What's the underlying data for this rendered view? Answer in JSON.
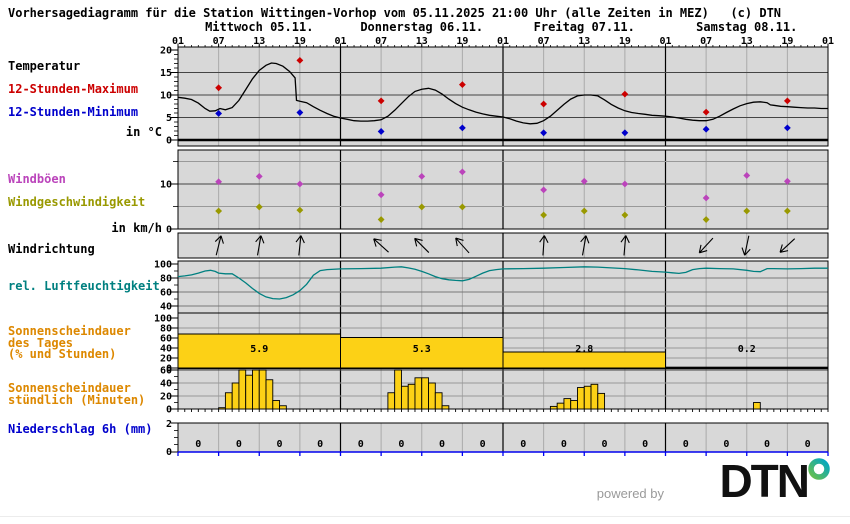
{
  "title": "Vorhersagediagramm für die Station Wittingen-Vorhop vom 05.11.2025 21:00 Uhr (alle Zeiten in MEZ)   (c) DTN",
  "footer": {
    "powered_by": "powered by",
    "brand": "DTN"
  },
  "sidebar": {
    "temperature_label": "Temperatur",
    "max_label": "12-Stunden-Maximum",
    "min_label": "12-Stunden-Minimum",
    "temp_unit": "in °C",
    "gusts_label": "Windböen",
    "windspeed_label": "Windgeschwindigkeit",
    "wind_unit": "in km/h",
    "winddir_label": "Windrichtung",
    "humidity_label": "rel. Luftfeuchtigkeit",
    "sunshine_daily_1": "Sonnenscheindauer",
    "sunshine_daily_2": "des Tages",
    "sunshine_daily_3": "(% und Stunden)",
    "sunshine_hourly_1": "Sonnenscheindauer",
    "sunshine_hourly_2": "stündlich (Minuten)",
    "precip_label": "Niederschlag 6h (mm)"
  },
  "colors": {
    "red": "#cc0000",
    "blue": "#0000cc",
    "magenta": "#bb44bb",
    "olive": "#999900",
    "teal": "#008080",
    "orange": "#dd8800",
    "yellow": "#fcd116",
    "panel_bg": "#d8d8d8",
    "grid_gray": "#aaaaaa",
    "axis_blue": "#0000ee"
  },
  "chart_data": {
    "type": "meteogram",
    "x_axis": {
      "hours_range": [
        0,
        96
      ],
      "tick_step_hours": 6,
      "time_label_cycle": [
        "01",
        "07",
        "13",
        "19"
      ]
    },
    "days": [
      "Mittwoch 05.11.",
      "Donnerstag 06.11.",
      "Freitag 07.11.",
      "Samstag 08.11."
    ],
    "temperature": {
      "ylim": [
        0,
        20
      ],
      "ytick_labels": [
        0,
        5,
        10,
        15,
        20
      ],
      "grid": [
        5,
        10,
        15
      ],
      "curve": [
        [
          0,
          9.5
        ],
        [
          1,
          9.3
        ],
        [
          2,
          9.0
        ],
        [
          3,
          8.2
        ],
        [
          4,
          7.0
        ],
        [
          4.7,
          6.4
        ],
        [
          5.5,
          6.5
        ],
        [
          6.2,
          7.0
        ],
        [
          7,
          6.7
        ],
        [
          8,
          7.2
        ],
        [
          9,
          8.8
        ],
        [
          10,
          11.2
        ],
        [
          11,
          13.6
        ],
        [
          12,
          15.5
        ],
        [
          13,
          16.6
        ],
        [
          13.8,
          17.1
        ],
        [
          14.5,
          17.0
        ],
        [
          15.5,
          16.4
        ],
        [
          16.5,
          15.2
        ],
        [
          17.3,
          13.8
        ],
        [
          17.5,
          8.8
        ],
        [
          18,
          8.6
        ],
        [
          19,
          8.3
        ],
        [
          20,
          7.4
        ],
        [
          21,
          6.6
        ],
        [
          22,
          5.9
        ],
        [
          23,
          5.3
        ],
        [
          24,
          4.9
        ],
        [
          25,
          4.6
        ],
        [
          26,
          4.3
        ],
        [
          27,
          4.2
        ],
        [
          28,
          4.2
        ],
        [
          29,
          4.3
        ],
        [
          30,
          4.5
        ],
        [
          31,
          5.3
        ],
        [
          32,
          6.6
        ],
        [
          33,
          8.1
        ],
        [
          34,
          9.6
        ],
        [
          35,
          10.8
        ],
        [
          36,
          11.3
        ],
        [
          37,
          11.5
        ],
        [
          38,
          11.1
        ],
        [
          39,
          10.2
        ],
        [
          40,
          9.1
        ],
        [
          41,
          8.1
        ],
        [
          42,
          7.3
        ],
        [
          43,
          6.7
        ],
        [
          44,
          6.2
        ],
        [
          45,
          5.8
        ],
        [
          46,
          5.5
        ],
        [
          47,
          5.3
        ],
        [
          48,
          5.1
        ],
        [
          49,
          4.7
        ],
        [
          50,
          4.2
        ],
        [
          51,
          3.8
        ],
        [
          52,
          3.6
        ],
        [
          53,
          3.7
        ],
        [
          54,
          4.3
        ],
        [
          55,
          5.3
        ],
        [
          56,
          6.6
        ],
        [
          57,
          7.9
        ],
        [
          58,
          9.1
        ],
        [
          59,
          9.8
        ],
        [
          60,
          10.0
        ],
        [
          61,
          10.0
        ],
        [
          62,
          9.8
        ],
        [
          63,
          8.9
        ],
        [
          64,
          7.9
        ],
        [
          65,
          7.1
        ],
        [
          66,
          6.5
        ],
        [
          67,
          6.1
        ],
        [
          68,
          5.9
        ],
        [
          69,
          5.7
        ],
        [
          70,
          5.5
        ],
        [
          71,
          5.4
        ],
        [
          72,
          5.3
        ],
        [
          73,
          5.1
        ],
        [
          74,
          4.9
        ],
        [
          75,
          4.6
        ],
        [
          76,
          4.4
        ],
        [
          77,
          4.3
        ],
        [
          78,
          4.3
        ],
        [
          79,
          4.6
        ],
        [
          80,
          5.3
        ],
        [
          81,
          6.1
        ],
        [
          82,
          6.9
        ],
        [
          83,
          7.6
        ],
        [
          84,
          8.1
        ],
        [
          85,
          8.4
        ],
        [
          86,
          8.5
        ],
        [
          87,
          8.3
        ],
        [
          87.5,
          7.8
        ],
        [
          88,
          7.7
        ],
        [
          89,
          7.5
        ],
        [
          90,
          7.4
        ],
        [
          91,
          7.3
        ],
        [
          92,
          7.2
        ],
        [
          93,
          7.1
        ],
        [
          94,
          7.1
        ],
        [
          95,
          7.0
        ],
        [
          96,
          7.0
        ]
      ],
      "max12h_points": [
        [
          6,
          11.6
        ],
        [
          18,
          17.7
        ],
        [
          30,
          8.7
        ],
        [
          42,
          12.3
        ],
        [
          54,
          8.0
        ],
        [
          66,
          10.2
        ],
        [
          78,
          6.2
        ],
        [
          90,
          8.7
        ]
      ],
      "min12h_points": [
        [
          6,
          5.9
        ],
        [
          18,
          6.1
        ],
        [
          30,
          1.9
        ],
        [
          42,
          2.7
        ],
        [
          54,
          1.6
        ],
        [
          66,
          1.6
        ],
        [
          78,
          2.4
        ],
        [
          90,
          2.7
        ]
      ]
    },
    "wind": {
      "ylim": [
        0,
        20
      ],
      "ytick_labels": [
        0,
        10
      ],
      "grid": [
        5,
        10,
        15
      ],
      "gusts_points": [
        [
          6,
          10.5
        ],
        [
          12,
          11.7
        ],
        [
          18,
          10.0
        ],
        [
          30,
          7.6
        ],
        [
          36,
          11.7
        ],
        [
          42,
          12.7
        ],
        [
          54,
          8.7
        ],
        [
          60,
          10.6
        ],
        [
          66,
          10.0
        ],
        [
          78,
          6.9
        ],
        [
          84,
          11.9
        ],
        [
          90,
          10.6
        ]
      ],
      "speed_points": [
        [
          6,
          4.0
        ],
        [
          12,
          4.9
        ],
        [
          18,
          4.2
        ],
        [
          30,
          2.1
        ],
        [
          36,
          4.9
        ],
        [
          42,
          4.9
        ],
        [
          54,
          3.1
        ],
        [
          60,
          4.0
        ],
        [
          66,
          3.1
        ],
        [
          78,
          2.1
        ],
        [
          84,
          4.0
        ],
        [
          90,
          4.0
        ]
      ]
    },
    "wind_direction": {
      "arrows_deg_clockwise_from_up": [
        [
          6,
          14
        ],
        [
          12,
          10
        ],
        [
          18,
          6
        ],
        [
          30,
          -48
        ],
        [
          36,
          -45
        ],
        [
          42,
          -42
        ],
        [
          54,
          4
        ],
        [
          60,
          10
        ],
        [
          66,
          5
        ],
        [
          78,
          223
        ],
        [
          84,
          192
        ],
        [
          90,
          227
        ]
      ]
    },
    "humidity": {
      "ytick_labels": [
        40,
        60,
        80,
        100
      ],
      "grid": [
        40,
        60,
        80
      ],
      "curve": [
        [
          0,
          82
        ],
        [
          1,
          83
        ],
        [
          2,
          84.5
        ],
        [
          3,
          87
        ],
        [
          4,
          90
        ],
        [
          4.8,
          91
        ],
        [
          5.5,
          89.5
        ],
        [
          6,
          87
        ],
        [
          7,
          86
        ],
        [
          8,
          86
        ],
        [
          9,
          80
        ],
        [
          10,
          73
        ],
        [
          11,
          65
        ],
        [
          12,
          58
        ],
        [
          13,
          53
        ],
        [
          14,
          50.5
        ],
        [
          15,
          50
        ],
        [
          16,
          52
        ],
        [
          17,
          56
        ],
        [
          18,
          62
        ],
        [
          19,
          71
        ],
        [
          20,
          84
        ],
        [
          21,
          90.5
        ],
        [
          22,
          92
        ],
        [
          24,
          93
        ],
        [
          27,
          93.5
        ],
        [
          30,
          94
        ],
        [
          32,
          95.5
        ],
        [
          33,
          96
        ],
        [
          34,
          94.5
        ],
        [
          35,
          92.5
        ],
        [
          36,
          89.5
        ],
        [
          37,
          86
        ],
        [
          38,
          82
        ],
        [
          39,
          79
        ],
        [
          40,
          77.5
        ],
        [
          41,
          76.5
        ],
        [
          42,
          76
        ],
        [
          43,
          78
        ],
        [
          44,
          82.5
        ],
        [
          45,
          87
        ],
        [
          46,
          90.5
        ],
        [
          47,
          92
        ],
        [
          48,
          93
        ],
        [
          51,
          93.5
        ],
        [
          54,
          94
        ],
        [
          57,
          95
        ],
        [
          60,
          96
        ],
        [
          62,
          95.5
        ],
        [
          64,
          94.5
        ],
        [
          66,
          93.5
        ],
        [
          68,
          91.5
        ],
        [
          70,
          89.5
        ],
        [
          72,
          88.5
        ],
        [
          73,
          87.5
        ],
        [
          74,
          86.5
        ],
        [
          75,
          88
        ],
        [
          76,
          92
        ],
        [
          77,
          93.5
        ],
        [
          78,
          94
        ],
        [
          80,
          93.5
        ],
        [
          82,
          93
        ],
        [
          84,
          91
        ],
        [
          85,
          89.5
        ],
        [
          86,
          89
        ],
        [
          87,
          93.5
        ],
        [
          88,
          93.5
        ],
        [
          90,
          93
        ],
        [
          92,
          93.5
        ],
        [
          94,
          94
        ],
        [
          96,
          94
        ]
      ]
    },
    "sunshine_daily": {
      "ytick_labels": [
        0,
        20,
        40,
        60,
        80,
        100
      ],
      "grid": [
        20,
        40,
        60,
        80
      ],
      "bars": [
        {
          "percent": 68,
          "hours_label": "5.9"
        },
        {
          "percent": 61,
          "hours_label": "5.3"
        },
        {
          "percent": 32,
          "hours_label": "2.8"
        },
        {
          "percent": 1.5,
          "hours_label": "0.2"
        }
      ]
    },
    "sunshine_hourly": {
      "ytick_labels": [
        0,
        20,
        40,
        60
      ],
      "grid": [
        20,
        40
      ],
      "bars": [
        [
          6,
          2
        ],
        [
          7,
          25
        ],
        [
          8,
          40
        ],
        [
          9,
          60
        ],
        [
          10,
          52
        ],
        [
          11,
          60
        ],
        [
          12,
          60
        ],
        [
          13,
          45
        ],
        [
          14,
          13
        ],
        [
          15,
          5
        ],
        [
          31,
          25
        ],
        [
          32,
          60
        ],
        [
          33,
          35
        ],
        [
          34,
          38
        ],
        [
          35,
          48
        ],
        [
          36,
          48
        ],
        [
          37,
          40
        ],
        [
          38,
          25
        ],
        [
          39,
          5
        ],
        [
          55,
          4
        ],
        [
          56,
          9
        ],
        [
          57,
          16
        ],
        [
          58,
          13
        ],
        [
          59,
          33
        ],
        [
          60,
          35
        ],
        [
          61,
          38
        ],
        [
          62,
          24
        ],
        [
          85,
          10
        ]
      ]
    },
    "precipitation": {
      "ytick_labels": [
        0,
        2
      ],
      "values_6h": [
        "0",
        "0",
        "0",
        "0",
        "0",
        "0",
        "0",
        "0",
        "0",
        "0",
        "0",
        "0",
        "0",
        "0",
        "0",
        "0"
      ]
    }
  }
}
